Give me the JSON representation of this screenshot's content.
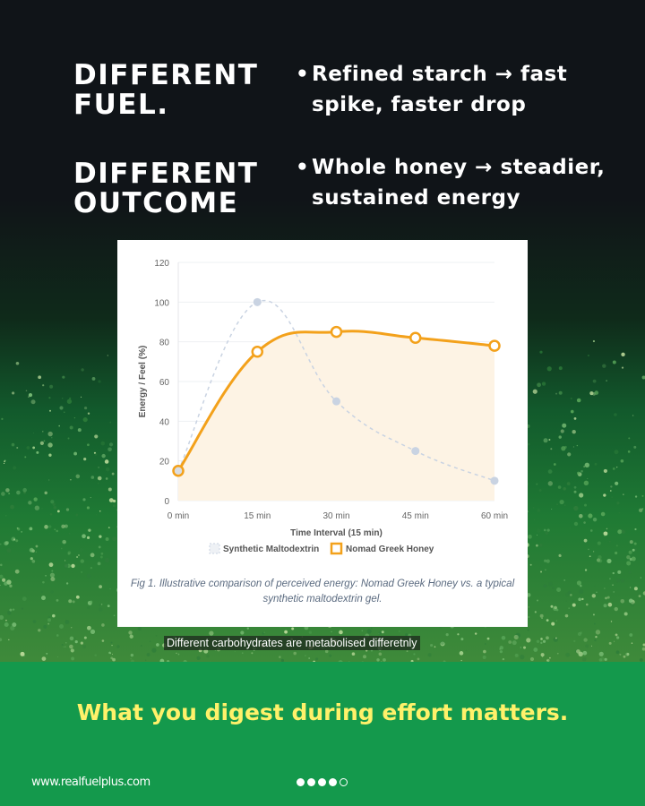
{
  "headline": {
    "line1": "DIFFERENT FUEL.",
    "line2": "DIFFERENT OUTCOME"
  },
  "bullets": [
    {
      "text": "Refined starch → fast spike, faster drop"
    },
    {
      "text": "Whole honey → steadier, sustained energy"
    }
  ],
  "chart_data": {
    "type": "line",
    "categories": [
      "0 min",
      "15 min",
      "30 min",
      "45 min",
      "60 min"
    ],
    "xlabel": "Time Interval (15 min)",
    "ylabel": "Energy / Feel (%)",
    "ylim": [
      0,
      120
    ],
    "yticks": [
      0,
      20,
      40,
      60,
      80,
      100,
      120
    ],
    "grid": true,
    "legend": "bottom",
    "series": [
      {
        "name": "Synthetic Maltodextrin",
        "values": [
          15,
          100,
          50,
          25,
          10
        ],
        "color": "#c9d3e2",
        "style": "dashed"
      },
      {
        "name": "Nomad Greek Honey",
        "values": [
          15,
          75,
          85,
          82,
          78
        ],
        "color": "#f3a11b",
        "fill": "#fdf3e4",
        "style": "solid"
      }
    ],
    "caption": "Fig 1. Illustrative comparison of perceived energy: Nomad Greek Honey vs. a typical synthetic maltodextrin gel."
  },
  "subtitle": "Different carbohydrates are metabolised differetnly",
  "tagline": "What you digest during effort matters.",
  "footer": {
    "url": "www.realfuelplus.com",
    "pagination": {
      "total": 5,
      "current": 4
    }
  }
}
